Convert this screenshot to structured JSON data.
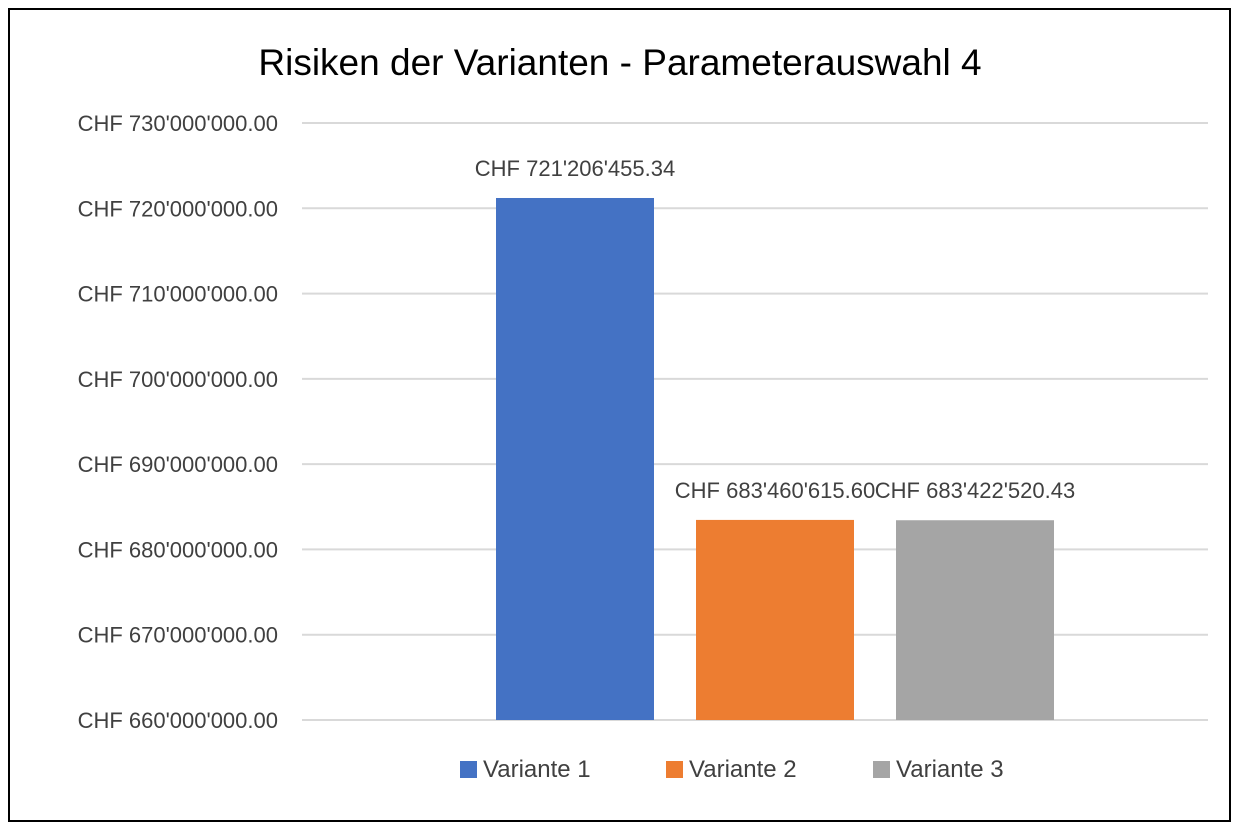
{
  "chart_data": {
    "type": "bar",
    "title": "Risiken der Varianten - Parameterauswahl 4",
    "xlabel": "",
    "ylabel": "",
    "ylim": [
      660000000,
      730000000
    ],
    "y_ticks": [
      "CHF 730'000'000.00",
      "CHF 720'000'000.00",
      "CHF 710'000'000.00",
      "CHF 700'000'000.00",
      "CHF 690'000'000.00",
      "CHF 680'000'000.00",
      "CHF 670'000'000.00",
      "CHF 660'000'000.00"
    ],
    "grid": true,
    "legend_position": "bottom",
    "series": [
      {
        "name": "Variante 1",
        "value": 721206455.34,
        "label": "CHF 721'206'455.34",
        "color": "#4472c4"
      },
      {
        "name": "Variante 2",
        "value": 683460615.6,
        "label": "CHF 683'460'615.60",
        "color": "#ed7d31"
      },
      {
        "name": "Variante 3",
        "value": 683422520.43,
        "label": "CHF 683'422'520.43",
        "color": "#a5a5a5"
      }
    ]
  }
}
